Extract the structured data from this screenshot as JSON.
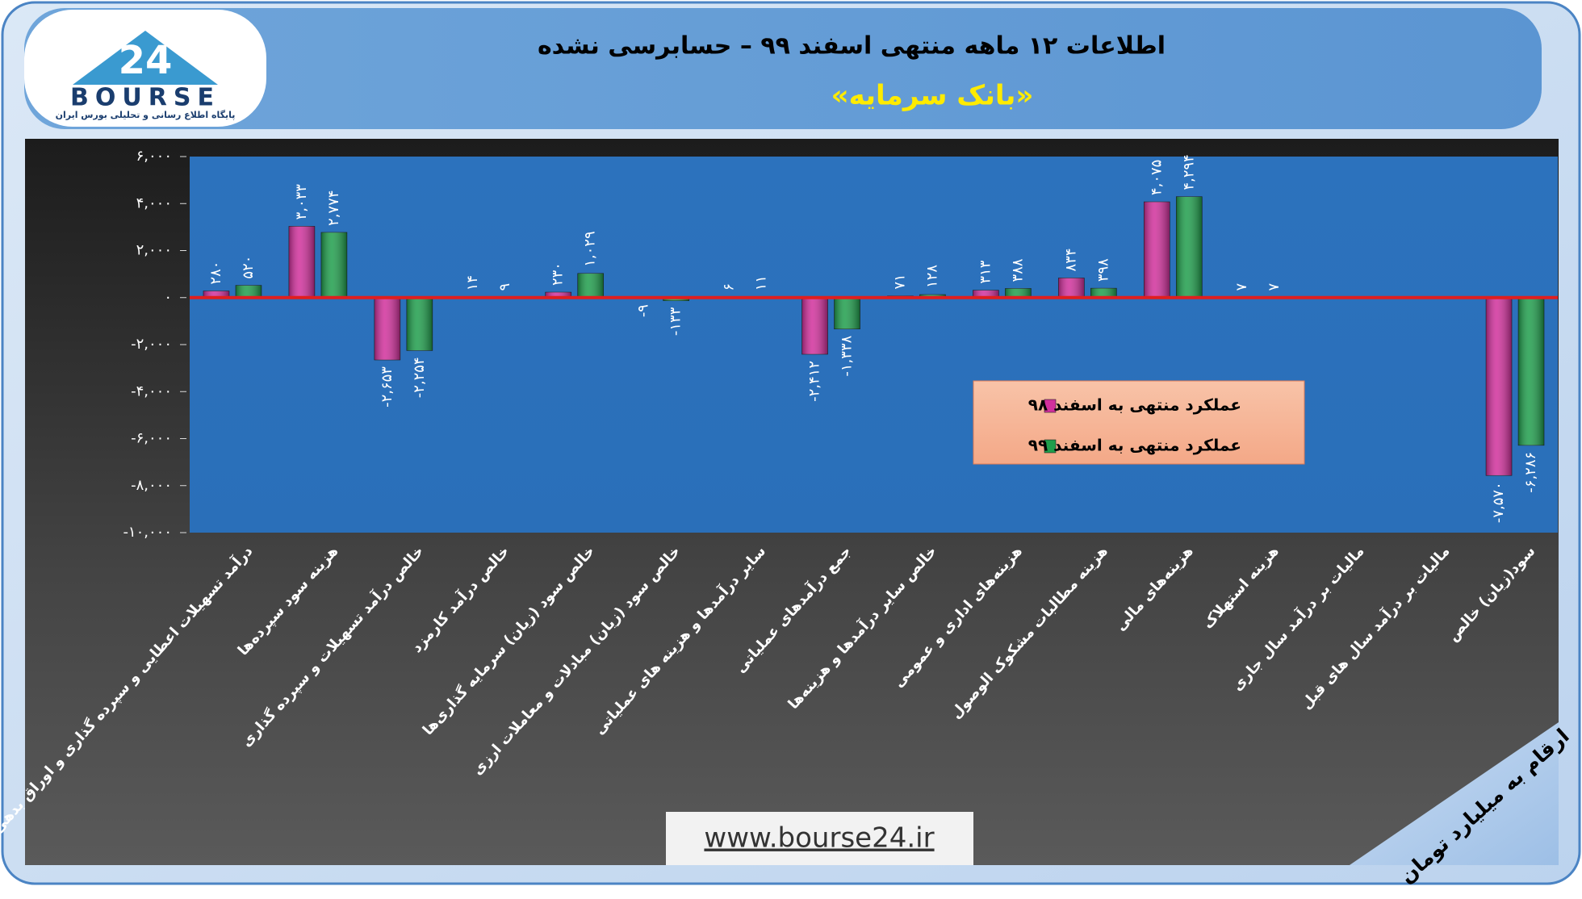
{
  "chart_data": {
    "type": "bar",
    "title": "اطلاعات ۱۲ ماهه منتهی اسفند ۹۹ – حسابرسی نشده",
    "subtitle": "«بانک سرمایه»",
    "unit_note": "ارقام به میلیارد تومان",
    "categories": [
      "درآمد تسهیلات اعطایی و سپرده گذاری و اوراق بدهی",
      "هزینه سود سپرده‌ها",
      "خالص درآمد تسهیلات و سپرده گذاری",
      "خالص درآمد کارمزد",
      "خالص سود (زیان) سرمایه گذاری‌ها",
      "خالص سود (زیان) مبادلات و معاملات ارزی",
      "سایر درآمدها و هزینه های عملیاتی",
      "جمع درآمدهای عملیاتی",
      "خالص سایر درآمدها و هزینه‌ها",
      "هزینه‌های اداری و عمومی",
      "هزینه مطالبات مشکوک الوصول",
      "هزینه‌های مالی",
      "هزینه استهلاک",
      "مالیات بر درآمد سال جاری",
      "مالیات بر درآمد سال های قبل",
      "سود(زیان) خالص"
    ],
    "series": [
      {
        "name": "عملکرد منتهی به اسفند ۹۸",
        "color": "#d1309c",
        "values": [
          280,
          3033,
          -2653,
          14,
          230,
          -9,
          6,
          -2412,
          71,
          313,
          834,
          4075,
          7,
          null,
          null,
          -7570
        ],
        "value_labels": [
          "۲۸۰",
          "۳,۰۳۳",
          "-۲,۶۵۳",
          "۱۴",
          "۲۳۰",
          "-۹",
          "۶",
          "-۲,۴۱۲",
          "۷۱",
          "۳۱۳",
          "۸۳۴",
          "۴,۰۷۵",
          "۷",
          null,
          null,
          "-۷,۵۷۰"
        ]
      },
      {
        "name": "عملکرد منتهی به اسفند ۹۹",
        "color": "#1f9e4c",
        "values": [
          520,
          2774,
          -2254,
          9,
          1029,
          -133,
          11,
          -1338,
          128,
          388,
          398,
          4294,
          7,
          null,
          null,
          -6286
        ],
        "value_labels": [
          "۵۲۰",
          "۲,۷۷۴",
          "-۲,۲۵۴",
          "۹",
          "۱,۰۲۹",
          "-۱۳۳",
          "۱۱",
          "-۱,۳۳۸",
          "۱۲۸",
          "۳۸۸",
          "۳۹۸",
          "۴,۲۹۴",
          "۷",
          null,
          null,
          "-۶,۲۸۶"
        ]
      }
    ],
    "ylim": [
      -10000,
      6000
    ],
    "yticks": [
      {
        "value": -10000,
        "label": "-۱۰,۰۰۰"
      },
      {
        "value": -8000,
        "label": "-۸,۰۰۰"
      },
      {
        "value": -6000,
        "label": "-۶,۰۰۰"
      },
      {
        "value": -4000,
        "label": "-۴,۰۰۰"
      },
      {
        "value": -2000,
        "label": "-۲,۰۰۰"
      },
      {
        "value": 0,
        "label": "۰"
      },
      {
        "value": 2000,
        "label": "۲,۰۰۰"
      },
      {
        "value": 4000,
        "label": "۴,۰۰۰"
      },
      {
        "value": 6000,
        "label": "۶,۰۰۰"
      }
    ],
    "grid": false
  },
  "logo": {
    "mark": "24",
    "name": "BOURSE",
    "tagline": "پایگاه اطلاع رسانی و تحلیلی بورس ایران"
  },
  "footer": "www.bourse24.ir"
}
